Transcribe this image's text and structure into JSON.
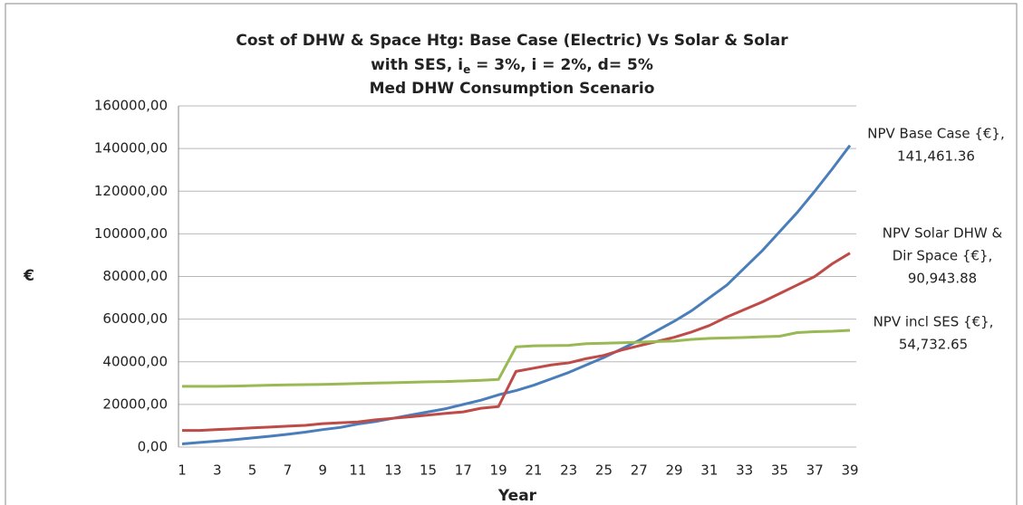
{
  "chart_data": {
    "type": "line",
    "title": {
      "line1": "Cost of DHW & Space Htg: Base Case (Electric) Vs Solar & Solar",
      "line2": [
        "with SES, i",
        "e",
        " = 3%, i = 2%, d= 5%"
      ],
      "line3": "Med DHW Consumption Scenario"
    },
    "x_label": "Year",
    "y_label": "€",
    "categories": [
      1,
      null,
      3,
      null,
      5,
      null,
      7,
      null,
      9,
      null,
      11,
      null,
      13,
      null,
      15,
      null,
      17,
      null,
      19,
      null,
      21,
      null,
      23,
      null,
      25,
      null,
      27,
      null,
      29,
      null,
      31,
      null,
      33,
      null,
      35,
      null,
      37,
      null,
      39
    ],
    "series": [
      {
        "name": "NPV Base Case {€}",
        "color": "#4a7ebb",
        "values": [
          1500,
          2200,
          2800,
          3500,
          4300,
          5100,
          6000,
          7000,
          8200,
          9200,
          10800,
          12000,
          13500,
          15000,
          16500,
          18000,
          20000,
          22000,
          24500,
          26500,
          29000,
          32000,
          35000,
          38500,
          42000,
          46000,
          50000,
          54500,
          59000,
          64000,
          70000,
          76000,
          84000,
          92000,
          101000,
          110000,
          120000,
          130500,
          141461.36
        ]
      },
      {
        "name": "NPV Solar DHW & Dir Space {€}",
        "color": "#be4b48",
        "values": [
          7800,
          7800,
          8200,
          8600,
          9000,
          9400,
          9800,
          10200,
          11000,
          11400,
          11800,
          12800,
          13500,
          14200,
          15000,
          15800,
          16500,
          18200,
          19000,
          35500,
          37000,
          38500,
          39500,
          41500,
          43000,
          45500,
          47500,
          49500,
          51500,
          54000,
          57000,
          61000,
          64500,
          68000,
          72000,
          76000,
          80000,
          86000,
          90943.88
        ]
      },
      {
        "name": "NPV incl SES {€}",
        "color": "#98b954",
        "values": [
          28500,
          28500,
          28500,
          28600,
          28800,
          29000,
          29200,
          29300,
          29400,
          29600,
          29800,
          30000,
          30200,
          30400,
          30600,
          30700,
          31000,
          31300,
          31700,
          47000,
          47500,
          47600,
          47700,
          48500,
          48700,
          48900,
          49200,
          49500,
          49700,
          50500,
          51000,
          51200,
          51400,
          51700,
          52000,
          53700,
          54100,
          54300,
          54732.65
        ]
      }
    ],
    "annotations": [
      [
        "NPV Base Case {€},",
        "141,461.36"
      ],
      [
        "NPV Solar DHW &",
        "Dir Space {€},",
        "90,943.88"
      ],
      [
        "NPV incl SES {€},",
        "54,732.65"
      ]
    ],
    "ylim": [
      0,
      160000
    ],
    "yticks": [
      {
        "value": 0,
        "label": "0,00"
      },
      {
        "value": 20000,
        "label": "20000,00"
      },
      {
        "value": 40000,
        "label": "40000,00"
      },
      {
        "value": 60000,
        "label": "60000,00"
      },
      {
        "value": 80000,
        "label": "80000,00"
      },
      {
        "value": 100000,
        "label": "100000,00"
      },
      {
        "value": 120000,
        "label": "120000,00"
      },
      {
        "value": 140000,
        "label": "140000,00"
      },
      {
        "value": 160000,
        "label": "160000,00"
      }
    ],
    "grid": true
  }
}
